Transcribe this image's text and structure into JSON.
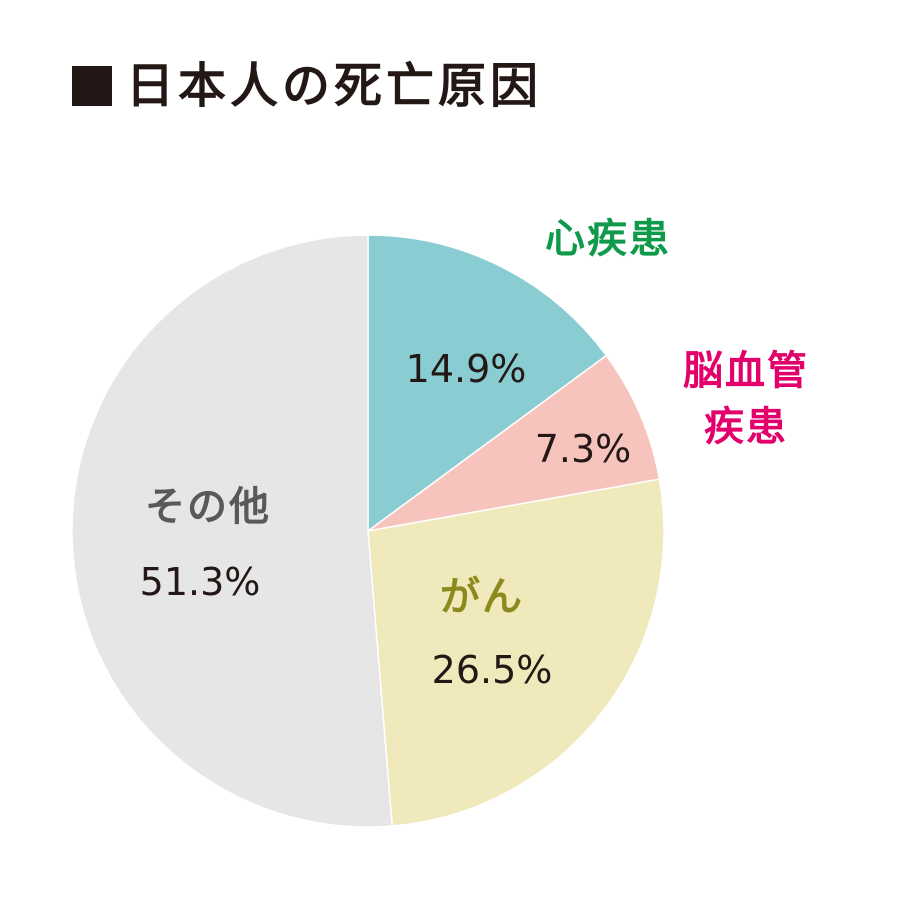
{
  "chart_data": {
    "type": "pie",
    "title": "日本人の死亡原因",
    "slices": [
      {
        "label": "心疾患",
        "value": 14.9,
        "value_label": "14.9%",
        "color": "#89cdd3",
        "label_color": "#0f9a4b"
      },
      {
        "label": "脳血管疾患",
        "label_lines": [
          "脳血管",
          "疾患"
        ],
        "value": 7.3,
        "value_label": "7.3%",
        "color": "#f6c4bc",
        "label_color": "#e3006b"
      },
      {
        "label": "がん",
        "value": 26.5,
        "value_label": "26.5%",
        "color": "#efe9bb",
        "label_color": "#8b8a1c"
      },
      {
        "label": "その他",
        "value": 51.3,
        "value_label": "51.3%",
        "color": "#e6e6e7",
        "label_color": "#59595b"
      }
    ],
    "start_angle": "12 o'clock",
    "direction": "clockwise",
    "legend": "none"
  }
}
